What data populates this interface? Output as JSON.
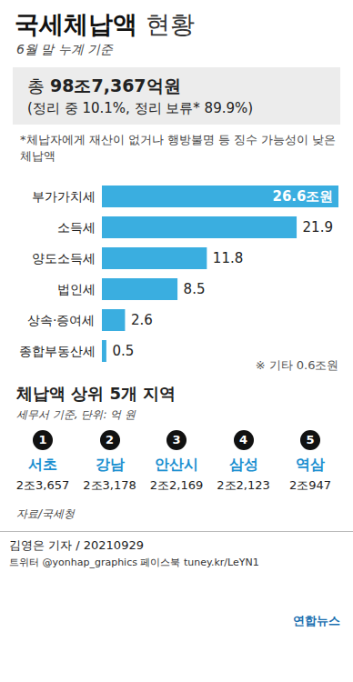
{
  "header": {
    "title_bold": "국세체납액",
    "title_rest": "현황",
    "subtitle": "6월 말 누계 기준",
    "total_prefix": "총",
    "total": "98조7,367억원",
    "status": "(정리 중 10.1%, 정리 보류* 89.9%)",
    "footnote": "*체납자에게 재산이 없거나 행방불명 등 징수 가능성이 낮은 체납액"
  },
  "chart_data": {
    "type": "bar",
    "orientation": "horizontal",
    "categories": [
      "부가가치세",
      "소득세",
      "양도소득세",
      "법인세",
      "상속·증여세",
      "종합부동산세"
    ],
    "values": [
      26.6,
      21.9,
      11.8,
      8.5,
      2.6,
      0.5
    ],
    "value_labels": [
      "26.6조원",
      "21.9",
      "11.8",
      "8.5",
      "2.6",
      "0.5"
    ],
    "data_labels": true,
    "color": "#3aaee0",
    "xlim": [
      0,
      26.6
    ],
    "tick_labels": "y",
    "grid": false,
    "annotations": [
      "※ 기타 0.6조원"
    ]
  },
  "regions": {
    "title": "체납액 상위 5개 지역",
    "unit": "세무서 기준, 단위: 억 원",
    "items": [
      {
        "rank": "1",
        "name": "서초",
        "value": "2조3,657"
      },
      {
        "rank": "2",
        "name": "강남",
        "value": "2조3,178"
      },
      {
        "rank": "3",
        "name": "안산시",
        "value": "2조2,169"
      },
      {
        "rank": "4",
        "name": "삼성",
        "value": "2조2,123"
      },
      {
        "rank": "5",
        "name": "역삼",
        "value": "2조947"
      }
    ]
  },
  "footer": {
    "source": "자료/국세청",
    "credit": "김영은 기자 / 20210929",
    "social": "트위터 @yonhap_graphics  페이스북 tuney.kr/LeYN1",
    "brand": "연합뉴스"
  }
}
